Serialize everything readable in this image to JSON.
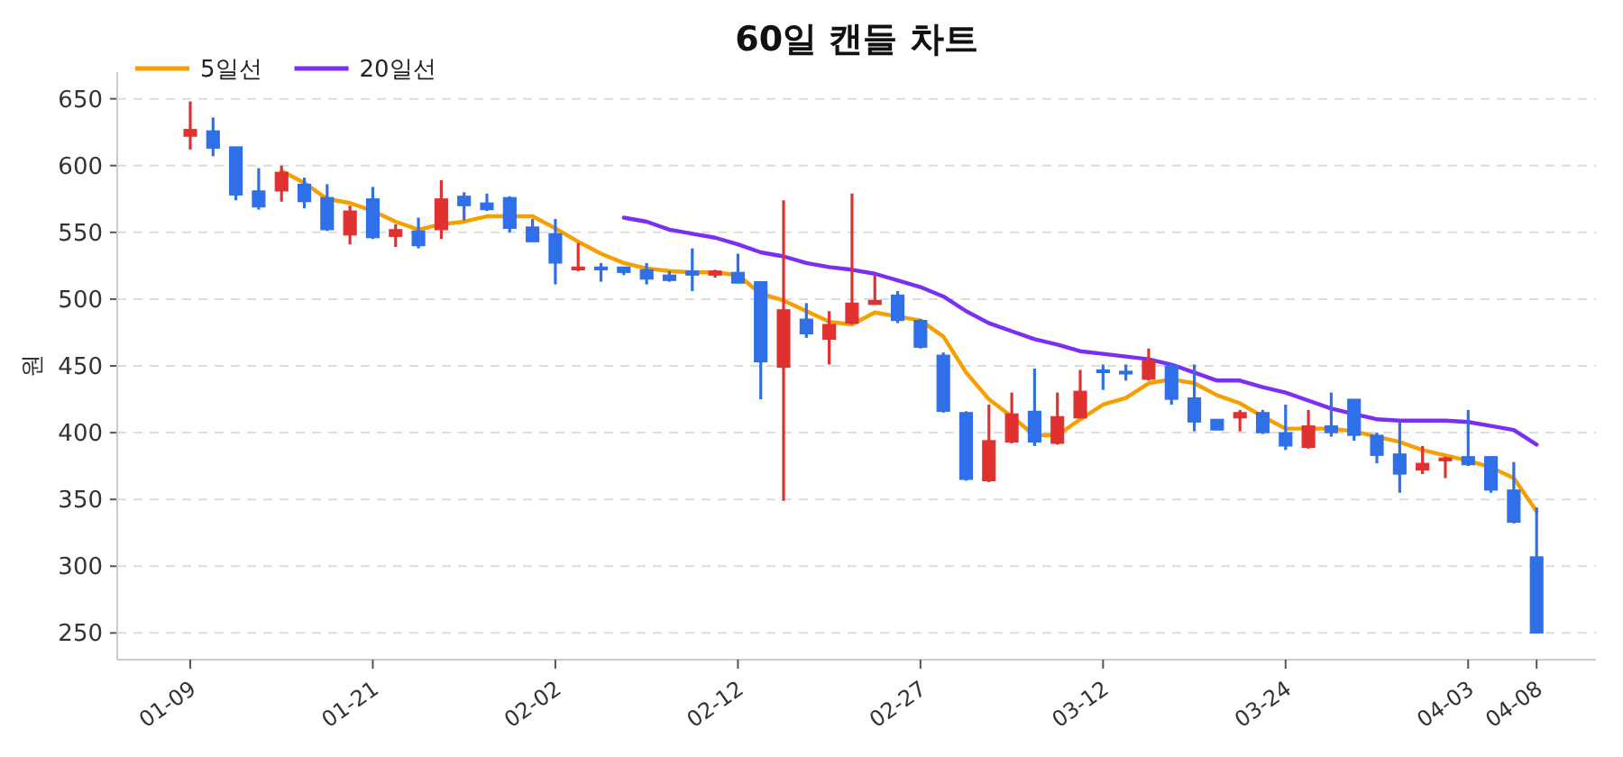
{
  "chart_data": {
    "type": "candlestick",
    "title": "60일 캔들 차트",
    "ylabel": "원",
    "categories": [
      "01-09",
      null,
      null,
      null,
      null,
      null,
      null,
      null,
      "01-21",
      null,
      null,
      null,
      null,
      null,
      null,
      null,
      "02-02",
      null,
      null,
      null,
      null,
      null,
      null,
      null,
      "02-12",
      null,
      null,
      null,
      null,
      null,
      null,
      null,
      "02-27",
      null,
      null,
      null,
      null,
      null,
      null,
      null,
      "03-12",
      null,
      null,
      null,
      null,
      null,
      null,
      null,
      "03-24",
      null,
      null,
      null,
      null,
      null,
      null,
      null,
      "04-03",
      null,
      null,
      "04-08"
    ],
    "ohlc": [
      [
        622,
        648,
        612,
        627
      ],
      [
        626,
        636,
        607,
        613
      ],
      [
        614,
        614,
        574,
        578
      ],
      [
        581,
        598,
        567,
        569
      ],
      [
        581,
        600,
        573,
        595
      ],
      [
        586,
        591,
        568,
        573
      ],
      [
        576,
        586,
        551,
        552
      ],
      [
        548,
        570,
        541,
        566
      ],
      [
        575,
        584,
        545,
        546
      ],
      [
        547,
        556,
        539,
        552
      ],
      [
        551,
        561,
        538,
        540
      ],
      [
        552,
        589,
        545,
        575
      ],
      [
        577,
        580,
        559,
        570
      ],
      [
        572,
        579,
        566,
        567
      ],
      [
        576,
        577,
        550,
        553
      ],
      [
        554,
        560,
        543,
        543
      ],
      [
        549,
        560,
        511,
        527
      ],
      [
        522,
        542,
        521,
        524
      ],
      [
        524,
        527,
        513,
        522
      ],
      [
        524,
        524,
        518,
        520
      ],
      [
        522,
        527,
        511,
        515
      ],
      [
        518,
        521,
        513,
        514
      ],
      [
        521,
        538,
        506,
        518
      ],
      [
        518,
        522,
        516,
        521
      ],
      [
        520,
        534,
        512,
        512
      ],
      [
        513,
        513,
        425,
        453
      ],
      [
        449,
        574,
        349,
        492
      ],
      [
        485,
        497,
        471,
        474
      ],
      [
        470,
        491,
        451,
        481
      ],
      [
        482,
        579,
        481,
        497
      ],
      [
        496,
        518,
        496,
        499
      ],
      [
        503,
        506,
        482,
        484
      ],
      [
        484,
        485,
        463,
        464
      ],
      [
        458,
        460,
        415,
        416
      ],
      [
        415,
        416,
        364,
        365
      ],
      [
        364,
        421,
        363,
        394
      ],
      [
        393,
        430,
        392,
        414
      ],
      [
        416,
        448,
        390,
        393
      ],
      [
        392,
        430,
        391,
        412
      ],
      [
        411,
        447,
        411,
        431
      ],
      [
        447,
        451,
        432,
        445
      ],
      [
        446,
        451,
        439,
        444
      ],
      [
        440,
        463,
        439,
        454
      ],
      [
        450,
        452,
        421,
        425
      ],
      [
        426,
        451,
        401,
        408
      ],
      [
        410,
        410,
        402,
        402
      ],
      [
        411,
        417,
        401,
        415
      ],
      [
        415,
        417,
        399,
        400
      ],
      [
        400,
        421,
        387,
        390
      ],
      [
        389,
        417,
        388,
        405
      ],
      [
        405,
        430,
        397,
        400
      ],
      [
        425,
        425,
        394,
        398
      ],
      [
        398,
        400,
        377,
        383
      ],
      [
        384,
        408,
        355,
        369
      ],
      [
        372,
        390,
        369,
        377
      ],
      [
        379,
        382,
        366,
        381
      ],
      [
        382,
        417,
        375,
        376
      ],
      [
        382,
        382,
        355,
        357
      ],
      [
        357,
        378,
        332,
        333
      ],
      [
        307,
        344,
        250,
        250
      ]
    ],
    "colors": [
      "#e03131",
      "#2f6fe8",
      "#2f6fe8",
      "#2f6fe8",
      "#e03131",
      "#2f6fe8",
      "#2f6fe8",
      "#e03131",
      "#2f6fe8",
      "#e03131",
      "#2f6fe8",
      "#e03131",
      "#2f6fe8",
      "#2f6fe8",
      "#2f6fe8",
      "#2f6fe8",
      "#2f6fe8",
      "#e03131",
      "#2f6fe8",
      "#2f6fe8",
      "#2f6fe8",
      "#2f6fe8",
      "#2f6fe8",
      "#e03131",
      "#2f6fe8",
      "#2f6fe8",
      "#e03131",
      "#2f6fe8",
      "#e03131",
      "#e03131",
      "#e03131",
      "#2f6fe8",
      "#2f6fe8",
      "#2f6fe8",
      "#2f6fe8",
      "#e03131",
      "#e03131",
      "#2f6fe8",
      "#e03131",
      "#e03131",
      "#2f6fe8",
      "#2f6fe8",
      "#e03131",
      "#2f6fe8",
      "#2f6fe8",
      "#2f6fe8",
      "#e03131",
      "#2f6fe8",
      "#2f6fe8",
      "#e03131",
      "#2f6fe8",
      "#2f6fe8",
      "#2f6fe8",
      "#2f6fe8",
      "#e03131",
      "#e03131",
      "#2f6fe8",
      "#2f6fe8",
      "#2f6fe8",
      "#2f6fe8"
    ],
    "series": [
      {
        "name": "5일선",
        "type": "line",
        "color": "#f59f00",
        "values": [
          null,
          null,
          null,
          null,
          596,
          587,
          575,
          572,
          566,
          558,
          552,
          556,
          558,
          562,
          562,
          562,
          553,
          543,
          534,
          527,
          523,
          521,
          520,
          520,
          518,
          504,
          499,
          491,
          483,
          481,
          490,
          487,
          484,
          472,
          445,
          425,
          412,
          398,
          398,
          410,
          421,
          426,
          437,
          440,
          437,
          428,
          422,
          412,
          403,
          403,
          403,
          401,
          397,
          393,
          387,
          383,
          379,
          374,
          366,
          341
        ]
      },
      {
        "name": "20일선",
        "type": "line",
        "color": "#7b2ff2",
        "values": [
          null,
          null,
          null,
          null,
          null,
          null,
          null,
          null,
          null,
          null,
          null,
          null,
          null,
          null,
          null,
          null,
          null,
          null,
          null,
          561,
          558,
          552,
          549,
          546,
          541,
          535,
          532,
          527,
          524,
          522,
          519,
          514,
          509,
          502,
          491,
          482,
          476,
          470,
          466,
          461,
          459,
          457,
          455,
          451,
          445,
          439,
          439,
          434,
          430,
          424,
          418,
          414,
          410,
          409,
          409,
          409,
          408,
          405,
          402,
          391
        ]
      }
    ],
    "ylim": [
      230,
      670
    ],
    "yticks": [
      250,
      300,
      350,
      400,
      450,
      500,
      550,
      600,
      650
    ],
    "grid": "y",
    "legend": "top left"
  }
}
